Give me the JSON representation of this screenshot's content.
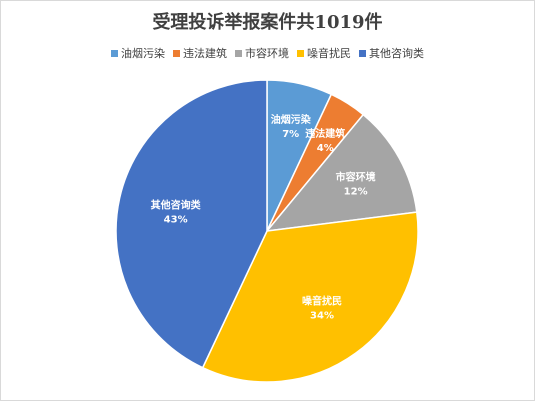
{
  "chart_data": {
    "type": "pie",
    "title": "受理投诉举报案件共1019件",
    "legend_position": "top",
    "categories": [
      "油烟污染",
      "违法建筑",
      "市容环境",
      "噪音扰民",
      "其他咨询类"
    ],
    "values": [
      7,
      4,
      12,
      34,
      43
    ],
    "value_labels": [
      "7%",
      "4%",
      "12%",
      "34%",
      "43%"
    ],
    "colors": [
      "#5b9bd5",
      "#ed7d31",
      "#a5a5a5",
      "#ffc000",
      "#4472c4"
    ]
  }
}
